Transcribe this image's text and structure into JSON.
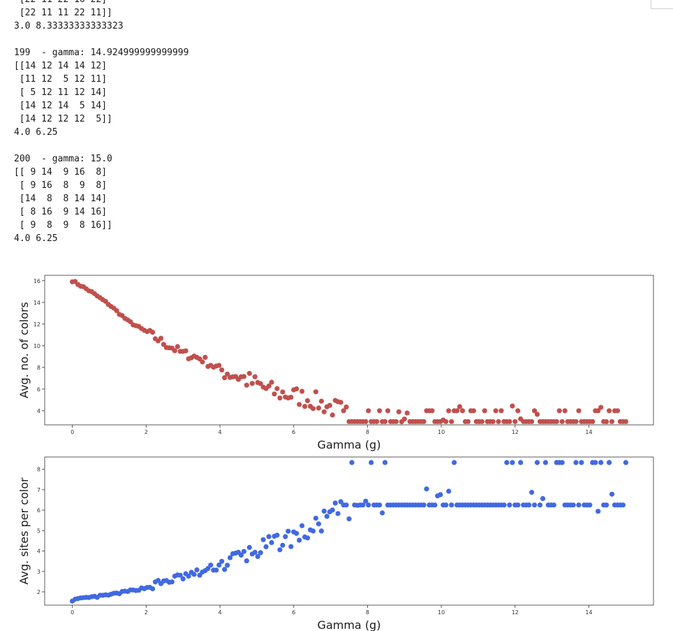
{
  "output_text": [
    " [22 11 22 16 22]",
    " [22 11 11 22 11]]",
    "3.0 8.33333333333323",
    "",
    "199  - gamma: 14.924999999999999",
    "[[14 12 14 14 12]",
    " [11 12  5 12 11]",
    " [ 5 12 11 12 14]",
    " [14 12 14  5 14]",
    " [14 12 12 12  5]]",
    "4.0 6.25",
    "",
    "200  - gamma: 15.0",
    "[[ 9 14  9 16  8]",
    " [ 9 16  8  9  8]",
    " [14  8  8 14 14]",
    " [ 8 16  9 14 16]",
    " [ 9  8  9  8 16]]",
    "4.0 6.25"
  ],
  "chart_data": [
    {
      "type": "scatter",
      "xlabel": "Gamma (g)",
      "ylabel": "Avg. no. of colors",
      "xlim": [
        -0.75,
        15.75
      ],
      "ylim": [
        2.7,
        16.5
      ],
      "xticks": [
        0,
        2,
        4,
        6,
        8,
        10,
        12,
        14
      ],
      "yticks": [
        4,
        6,
        8,
        10,
        12,
        14,
        16
      ],
      "color": "#c0504d",
      "grid": false,
      "x_range": [
        0,
        15,
        0.075
      ],
      "segments": [
        [
          0,
          16
        ],
        [
          0.5,
          15
        ],
        [
          1,
          13.8
        ],
        [
          1.5,
          12.3
        ],
        [
          2,
          11.3
        ],
        [
          2.5,
          10.2
        ],
        [
          3,
          9.3
        ],
        [
          3.5,
          8.8
        ],
        [
          4,
          7.8
        ],
        [
          4.5,
          7.2
        ],
        [
          5,
          6.4
        ],
        [
          5.5,
          5.7
        ],
        [
          6,
          5.4
        ],
        [
          6.5,
          5
        ],
        [
          7,
          4.3
        ],
        [
          7.5,
          3.9
        ],
        [
          8,
          3.7
        ],
        [
          15,
          3.7
        ]
      ],
      "levels_after_x": 7.3,
      "levels": [
        3,
        4
      ]
    },
    {
      "type": "scatter",
      "xlabel": "Gamma (g)",
      "ylabel": "Avg. sites per color",
      "xlim": [
        -0.75,
        15.75
      ],
      "ylim": [
        1.35,
        8.6
      ],
      "xticks": [
        0,
        2,
        4,
        6,
        8,
        10,
        12,
        14
      ],
      "yticks": [
        2,
        3,
        4,
        5,
        6,
        7,
        8
      ],
      "color": "#4169e1",
      "grid": false,
      "x_range": [
        0,
        15,
        0.075
      ],
      "segments": [
        [
          0,
          1.6
        ],
        [
          1,
          1.85
        ],
        [
          2,
          2.2
        ],
        [
          2.5,
          2.5
        ],
        [
          3,
          2.75
        ],
        [
          3.5,
          2.95
        ],
        [
          4,
          3.3
        ],
        [
          4.5,
          3.7
        ],
        [
          5,
          4.0
        ],
        [
          5.5,
          4.4
        ],
        [
          6,
          4.7
        ],
        [
          6.5,
          5.0
        ],
        [
          7,
          5.8
        ],
        [
          7.5,
          6.2
        ],
        [
          8,
          6.5
        ],
        [
          15,
          6.5
        ]
      ],
      "levels_after_x": 7.3,
      "levels": [
        6.25,
        8.33
      ]
    }
  ]
}
